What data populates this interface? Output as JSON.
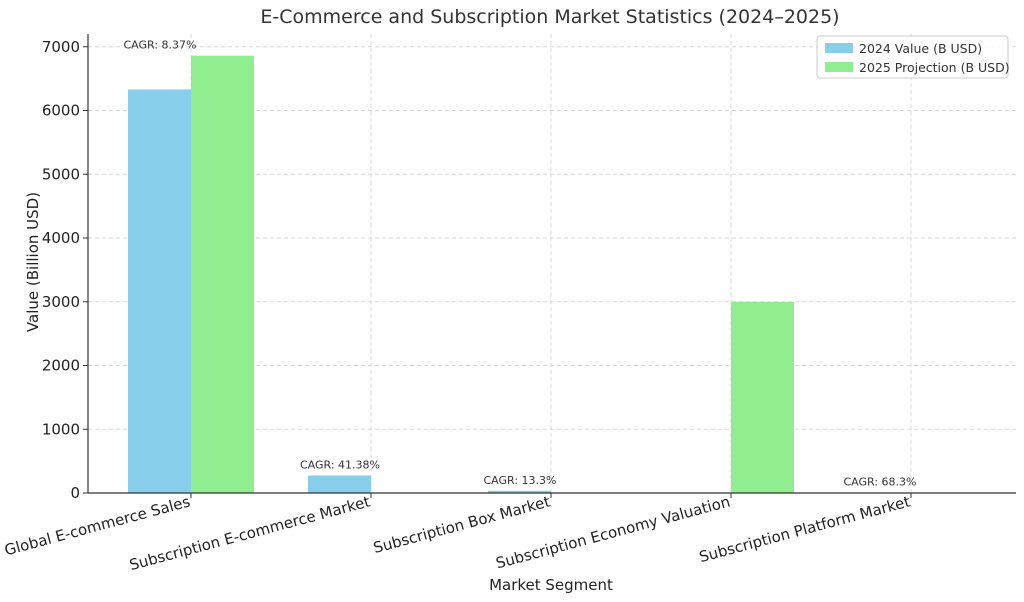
{
  "chart_data": {
    "type": "bar",
    "title": "E-Commerce and Subscription Market Statistics (2024–2025)",
    "xlabel": "Market Segment",
    "ylabel": "Value (Billion USD)",
    "ylim": [
      0,
      7200
    ],
    "yticks": [
      0,
      1000,
      2000,
      3000,
      4000,
      5000,
      6000,
      7000
    ],
    "grid": true,
    "legend_position": "top-right",
    "categories": [
      "Global E-commerce Sales",
      "Subscription E-commerce Market",
      "Subscription Box Market",
      "Subscription Economy Valuation",
      "Subscription Platform Market"
    ],
    "series": [
      {
        "name": "2024 Value (B USD)",
        "color": "#87ceeb",
        "values": [
          6330,
          275,
          35,
          0,
          5
        ]
      },
      {
        "name": "2025 Projection (B USD)",
        "color": "#90ee90",
        "values": [
          6860,
          0,
          0,
          3000,
          0
        ]
      }
    ],
    "annotations": [
      {
        "category": 0,
        "text": "CAGR: 8.37%",
        "value": 6860
      },
      {
        "category": 1,
        "text": "CAGR: 41.38%",
        "value": 275
      },
      {
        "category": 2,
        "text": "CAGR: 13.3%",
        "value": 35
      },
      {
        "category": 4,
        "text": "CAGR: 68.3%",
        "value": 5
      }
    ]
  }
}
